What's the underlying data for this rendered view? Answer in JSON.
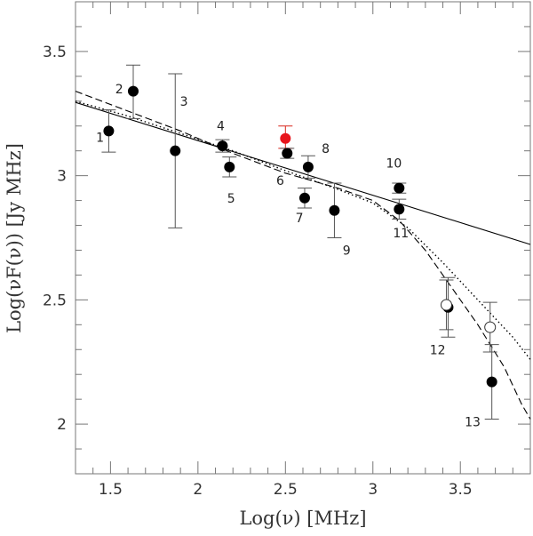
{
  "chart_data": {
    "type": "scatter",
    "title": "",
    "xlabel": "Log(ν)  [MHz]",
    "ylabel": "Log(νF(ν))  [Jy MHz]",
    "xlim": [
      1.3,
      3.9
    ],
    "ylim": [
      1.8,
      3.7
    ],
    "x_ticks": [
      1.5,
      2,
      2.5,
      3,
      3.5
    ],
    "x_tick_labels": [
      "1.5",
      "2",
      "2.5",
      "3",
      "3.5"
    ],
    "y_ticks": [
      2,
      2.5,
      3,
      3.5
    ],
    "y_tick_labels": [
      "2",
      "2.5",
      "3",
      "3.5"
    ],
    "x_minor_step": 0.1,
    "y_minor_step": 0.1,
    "points": [
      {
        "label": "1",
        "x": 1.49,
        "y": 3.18,
        "err_lo": 0.085,
        "err_hi": 0.085,
        "style": "filled"
      },
      {
        "label": "2",
        "x": 1.63,
        "y": 3.34,
        "err_lo": 0.11,
        "err_hi": 0.105,
        "style": "filled"
      },
      {
        "label": "3",
        "x": 1.87,
        "y": 3.1,
        "err_lo": 0.31,
        "err_hi": 0.31,
        "style": "filled"
      },
      {
        "label": "4",
        "x": 2.14,
        "y": 3.12,
        "err_lo": 0.025,
        "err_hi": 0.025,
        "style": "filled"
      },
      {
        "label": "5",
        "x": 2.18,
        "y": 3.035,
        "err_lo": 0.04,
        "err_hi": 0.04,
        "style": "filled"
      },
      {
        "label": "red",
        "x": 2.5,
        "y": 3.15,
        "err_lo": 0.04,
        "err_hi": 0.05,
        "style": "red"
      },
      {
        "label": "6",
        "x": 2.51,
        "y": 3.09,
        "err_lo": 0.02,
        "err_hi": 0.02,
        "style": "filled"
      },
      {
        "label": "7",
        "x": 2.61,
        "y": 2.91,
        "err_lo": 0.04,
        "err_hi": 0.04,
        "style": "filled"
      },
      {
        "label": "8",
        "x": 2.63,
        "y": 3.035,
        "err_lo": 0.045,
        "err_hi": 0.045,
        "style": "filled"
      },
      {
        "label": "9",
        "x": 2.78,
        "y": 2.86,
        "err_lo": 0.11,
        "err_hi": 0.11,
        "style": "filled"
      },
      {
        "label": "10",
        "x": 3.15,
        "y": 2.95,
        "err_lo": 0.02,
        "err_hi": 0.02,
        "style": "filled"
      },
      {
        "label": "11",
        "x": 3.15,
        "y": 2.865,
        "err_lo": 0.04,
        "err_hi": 0.04,
        "style": "filled"
      },
      {
        "label": "12",
        "x": 3.43,
        "y": 2.47,
        "err_lo": 0.12,
        "err_hi": 0.12,
        "style": "filled"
      },
      {
        "label": "12o",
        "x": 3.42,
        "y": 2.48,
        "err_lo": 0.1,
        "err_hi": 0.1,
        "style": "open"
      },
      {
        "label": "13",
        "x": 3.68,
        "y": 2.17,
        "err_lo": 0.15,
        "err_hi": 0.15,
        "style": "filled"
      },
      {
        "label": "13o",
        "x": 3.67,
        "y": 2.39,
        "err_lo": 0.1,
        "err_hi": 0.1,
        "style": "open"
      }
    ],
    "point_labels": [
      {
        "text": "1",
        "x": 1.44,
        "y": 3.155
      },
      {
        "text": "2",
        "x": 1.55,
        "y": 3.35
      },
      {
        "text": "3",
        "x": 1.92,
        "y": 3.3
      },
      {
        "text": "4",
        "x": 2.13,
        "y": 3.2
      },
      {
        "text": "5",
        "x": 2.19,
        "y": 2.91
      },
      {
        "text": "6",
        "x": 2.47,
        "y": 2.98
      },
      {
        "text": "7",
        "x": 2.58,
        "y": 2.83
      },
      {
        "text": "8",
        "x": 2.73,
        "y": 3.11
      },
      {
        "text": "9",
        "x": 2.85,
        "y": 2.7
      },
      {
        "text": "10",
        "x": 3.12,
        "y": 3.05
      },
      {
        "text": "11",
        "x": 3.16,
        "y": 2.77
      },
      {
        "text": "12",
        "x": 3.37,
        "y": 2.3
      },
      {
        "text": "13",
        "x": 3.57,
        "y": 2.01
      }
    ],
    "curves": [
      {
        "name": "power-law",
        "style": "solid",
        "y0": 3.295,
        "slope": -0.22,
        "x_ref": 1.3
      },
      {
        "name": "curved-dotted",
        "style": "dotted",
        "x": [
          1.3,
          1.6,
          1.9,
          2.2,
          2.5,
          2.8,
          3.0,
          3.2,
          3.4,
          3.6,
          3.8,
          3.9
        ],
        "y": [
          3.3,
          3.24,
          3.17,
          3.1,
          3.02,
          2.945,
          2.89,
          2.79,
          2.65,
          2.5,
          2.35,
          2.26
        ]
      },
      {
        "name": "curved-dashed",
        "style": "dashed",
        "x": [
          1.3,
          1.6,
          1.9,
          2.2,
          2.5,
          2.8,
          3.0,
          3.15,
          3.3,
          3.45,
          3.6,
          3.75,
          3.85,
          3.9
        ],
        "y": [
          3.34,
          3.26,
          3.18,
          3.09,
          3.01,
          2.95,
          2.9,
          2.82,
          2.7,
          2.55,
          2.4,
          2.23,
          2.08,
          2.02
        ]
      }
    ]
  }
}
